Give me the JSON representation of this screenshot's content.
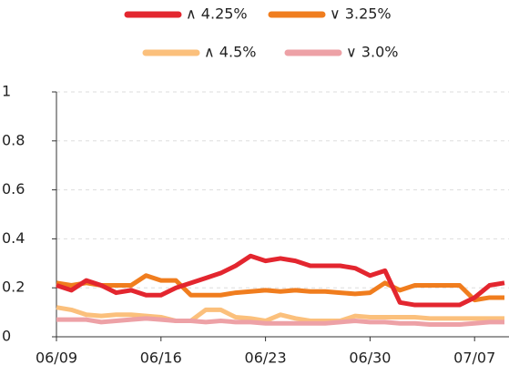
{
  "chart_data": {
    "type": "line",
    "categories": [
      "06/09",
      null,
      null,
      null,
      null,
      null,
      null,
      "06/16",
      null,
      null,
      null,
      null,
      null,
      null,
      "06/23",
      null,
      null,
      null,
      null,
      null,
      null,
      "06/30",
      null,
      null,
      null,
      null,
      null,
      null,
      "07/07",
      null,
      null
    ],
    "series": [
      {
        "name": "∧ 4.25%",
        "color": "#e3262f",
        "values": [
          0.21,
          0.19,
          0.23,
          0.21,
          0.18,
          0.19,
          0.17,
          0.17,
          0.2,
          0.22,
          0.24,
          0.26,
          0.29,
          0.33,
          0.31,
          0.32,
          0.31,
          0.29,
          0.29,
          0.29,
          0.28,
          0.25,
          0.27,
          0.14,
          0.13,
          0.13,
          0.13,
          0.13,
          0.16,
          0.21,
          0.22
        ]
      },
      {
        "name": "∨ 3.25%",
        "color": "#f07d1e",
        "values": [
          0.22,
          0.21,
          0.22,
          0.21,
          0.21,
          0.21,
          0.25,
          0.23,
          0.23,
          0.17,
          0.17,
          0.17,
          0.18,
          0.185,
          0.19,
          0.185,
          0.19,
          0.185,
          0.185,
          0.18,
          0.175,
          0.18,
          0.22,
          0.19,
          0.21,
          0.21,
          0.21,
          0.21,
          0.15,
          0.16,
          0.16
        ]
      },
      {
        "name": "∧ 4.5%",
        "color": "#fbc07c",
        "values": [
          0.12,
          0.11,
          0.09,
          0.085,
          0.09,
          0.09,
          0.085,
          0.08,
          0.065,
          0.065,
          0.11,
          0.11,
          0.08,
          0.075,
          0.065,
          0.09,
          0.075,
          0.065,
          0.065,
          0.065,
          0.085,
          0.08,
          0.08,
          0.08,
          0.08,
          0.075,
          0.075,
          0.075,
          0.075,
          0.075,
          0.075
        ]
      },
      {
        "name": "∨ 3.0%",
        "color": "#eda1a6",
        "values": [
          0.07,
          0.07,
          0.07,
          0.06,
          0.065,
          0.07,
          0.075,
          0.07,
          0.065,
          0.065,
          0.06,
          0.065,
          0.06,
          0.06,
          0.055,
          0.055,
          0.055,
          0.055,
          0.055,
          0.06,
          0.065,
          0.06,
          0.06,
          0.055,
          0.055,
          0.05,
          0.05,
          0.05,
          0.055,
          0.06,
          0.06
        ]
      }
    ],
    "ylim": [
      0,
      1
    ],
    "yticks": [
      0,
      0.2,
      0.4,
      0.6,
      0.8,
      1
    ],
    "grid": true
  }
}
